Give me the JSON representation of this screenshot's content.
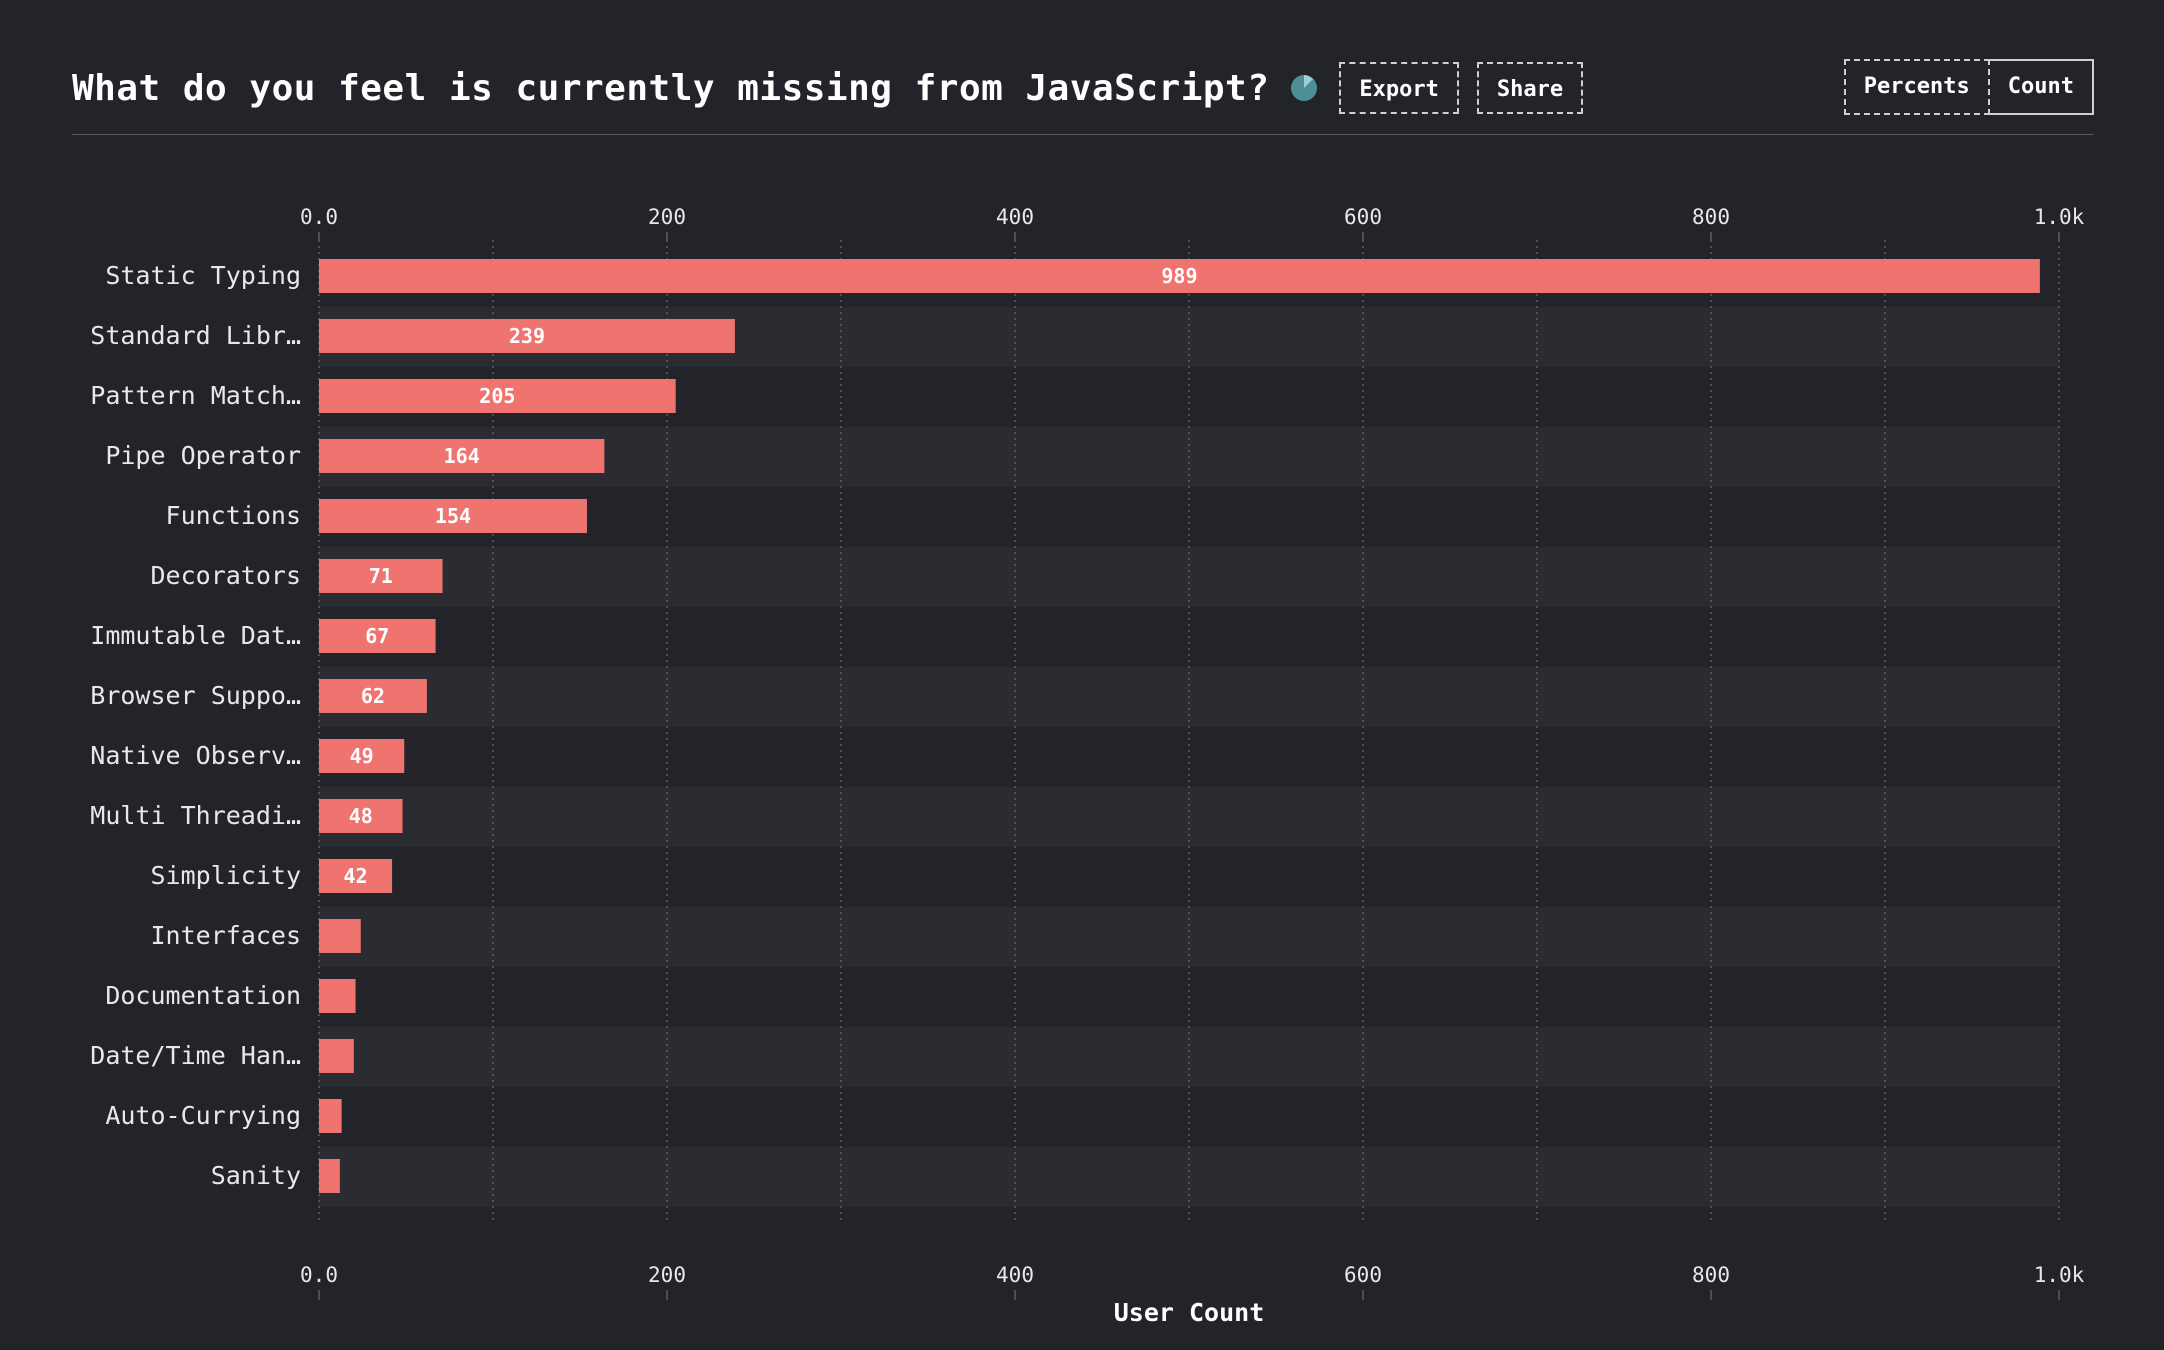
{
  "header": {
    "title": "What do you feel is currently missing from JavaScript?",
    "info_icon": "pie-chart-icon",
    "export_label": "Export",
    "share_label": "Share",
    "toggle": {
      "percents_label": "Percents",
      "count_label": "Count",
      "selected": "Count"
    }
  },
  "colors": {
    "background": "#232429",
    "bar": "#ef7470",
    "band": "#2b2c31",
    "grid": "#6a6b70",
    "text": "#e8e8e8",
    "pie_icon": "#4c8f95"
  },
  "chart_data": {
    "type": "bar",
    "orientation": "horizontal",
    "categories": [
      "Static Typing",
      "Standard Libr…",
      "Pattern Match…",
      "Pipe Operator",
      "Functions",
      "Decorators",
      "Immutable Dat…",
      "Browser Suppo…",
      "Native Observ…",
      "Multi Threadi…",
      "Simplicity",
      "Interfaces",
      "Documentation",
      "Date/Time Han…",
      "Auto-Currying",
      "Sanity"
    ],
    "values": [
      989,
      239,
      205,
      164,
      154,
      71,
      67,
      62,
      49,
      48,
      42,
      24,
      21,
      20,
      13,
      12
    ],
    "value_labels": [
      "989",
      "239",
      "205",
      "164",
      "154",
      "71",
      "67",
      "62",
      "49",
      "48",
      "42",
      "",
      "",
      "",
      "",
      ""
    ],
    "xlabel": "User Count",
    "xlim": [
      0,
      1000
    ],
    "ticks": [
      0,
      200,
      400,
      600,
      800,
      1000
    ],
    "tick_labels": [
      "0.0",
      "200",
      "400",
      "600",
      "800",
      "1.0k"
    ],
    "minor_gridlines": [
      100,
      300,
      500,
      700,
      900
    ],
    "axis_top": true,
    "axis_bottom": true,
    "grid": true
  }
}
